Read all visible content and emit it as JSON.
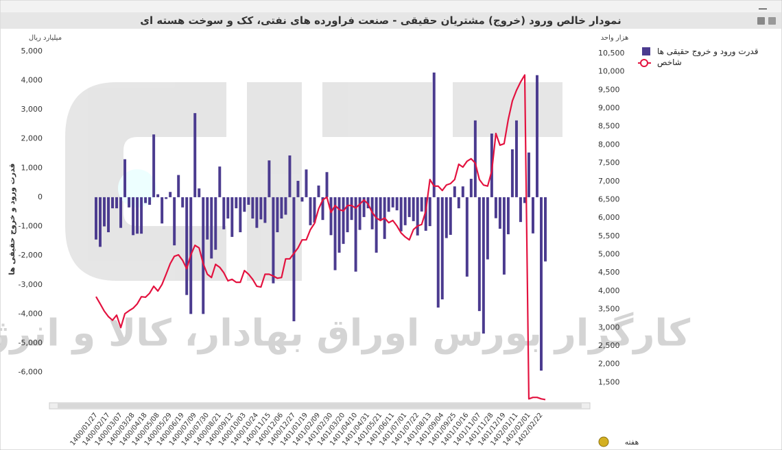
{
  "chart_data": {
    "type": "combo",
    "title": "نمودار خالص ورود (خروج) مشتریان حقیقی - صنعت فراورده های نفتی، کک و سوخت هسته ای",
    "y_unit": "میلیارد ریال",
    "y2_unit": "هزار واحد",
    "y_label": "قدرت ورود و خروج حقیقی ها",
    "x_label": "هفته",
    "watermark": "کارگزار بورس اوراق بهادار، کالا و انرژی",
    "grid": false,
    "legend": "right",
    "categories": [
      "1400/01/27",
      null,
      null,
      "1400/02/17",
      null,
      null,
      "1400/03/07",
      null,
      null,
      "1400/03/28",
      null,
      null,
      "1400/04/18",
      null,
      null,
      "1400/05/08",
      null,
      null,
      "1400/05/29",
      null,
      null,
      "1400/06/19",
      null,
      null,
      "1400/07/09",
      null,
      null,
      "1400/07/30",
      null,
      null,
      "1400/08/21",
      null,
      null,
      "1400/09/12",
      null,
      null,
      "1400/10/03",
      null,
      null,
      "1400/10/24",
      null,
      null,
      "1400/11/15",
      null,
      null,
      "1400/12/06",
      null,
      null,
      "1400/12/27",
      null,
      null,
      "1401/01/19",
      null,
      null,
      "1401/02/09",
      null,
      null,
      "1401/02/30",
      null,
      null,
      "1401/03/20",
      null,
      null,
      "1401/04/10",
      null,
      null,
      "1401/04/31",
      null,
      null,
      "1401/05/21",
      null,
      null,
      "1401/06/11",
      null,
      null,
      "1401/07/01",
      null,
      null,
      "1401/07/22",
      null,
      null,
      "1401/08/13",
      null,
      null,
      "1401/09/04",
      null,
      null,
      "1401/09/25",
      null,
      null,
      "1401/10/16",
      null,
      null,
      "1401/11/07",
      null,
      null,
      "1401/11/28",
      null,
      null,
      "1401/12/19",
      null,
      null,
      "1402/01/11",
      null,
      null,
      "1402/02/01",
      null,
      null,
      "1402/02/22",
      null
    ],
    "series": [
      {
        "name": "قدرت ورود و خروج حقیقی ها",
        "type": "bar",
        "color": "#4b3b8f",
        "values": [
          -1450,
          -1700,
          -1000,
          -1200,
          -380,
          -380,
          -1050,
          1300,
          -350,
          -1300,
          -1250,
          -1250,
          -200,
          -260,
          2150,
          100,
          -900,
          -60,
          180,
          -1650,
          760,
          -350,
          -3350,
          -4000,
          2880,
          300,
          -4000,
          -1450,
          -2100,
          -1800,
          1050,
          -1100,
          -730,
          -1360,
          -380,
          -1200,
          -500,
          -260,
          -730,
          -1050,
          -760,
          -880,
          1260,
          -2950,
          -1200,
          -730,
          -600,
          1430,
          -4250,
          560,
          -150,
          950,
          -960,
          -870,
          400,
          -780,
          860,
          -1300,
          -2500,
          -1900,
          -1600,
          -1200,
          -780,
          -2550,
          -1120,
          -680,
          -380,
          -1100,
          -1900,
          -800,
          -1430,
          -500,
          -350,
          -450,
          -1170,
          -960,
          -680,
          -820,
          -1310,
          -490,
          -1150,
          -990,
          4270,
          -3780,
          -3500,
          -1400,
          -1290,
          370,
          -380,
          370,
          -2720,
          630,
          2630,
          -3900,
          -4670,
          -2130,
          2180,
          -720,
          -1080,
          -2650,
          -1270,
          1640,
          2630,
          -850,
          -200,
          1530,
          -1240,
          4180,
          -5940,
          -2200
        ]
      },
      {
        "name": "شاخص",
        "type": "line",
        "axis": "y2",
        "color": "#e3123f",
        "values": [
          3845,
          3650,
          3450,
          3300,
          3200,
          3340,
          3000,
          3380,
          3460,
          3530,
          3650,
          3845,
          3830,
          3940,
          4130,
          4000,
          4180,
          4460,
          4750,
          4950,
          4990,
          4840,
          4610,
          4990,
          5250,
          5180,
          4750,
          4460,
          4370,
          4730,
          4650,
          4500,
          4280,
          4320,
          4240,
          4240,
          4560,
          4460,
          4320,
          4130,
          4110,
          4460,
          4460,
          4410,
          4350,
          4370,
          4880,
          4880,
          5030,
          5180,
          5400,
          5400,
          5680,
          5850,
          6250,
          6490,
          6570,
          6150,
          6340,
          6230,
          6190,
          6340,
          6340,
          6270,
          6380,
          6490,
          6380,
          6150,
          6000,
          5930,
          6000,
          5870,
          5930,
          5780,
          5590,
          5480,
          5400,
          5680,
          5780,
          5820,
          6190,
          7050,
          6870,
          6870,
          6750,
          6900,
          6940,
          7050,
          7470,
          7390,
          7550,
          7620,
          7500,
          7050,
          6900,
          6870,
          7280,
          8310,
          7990,
          8030,
          8690,
          9200,
          9490,
          9720,
          9910,
          1050,
          1090,
          1090,
          1050,
          1030
        ]
      }
    ],
    "ylim": [
      -6970,
      5300
    ],
    "yticks": [
      {
        "value": 5000,
        "label": "5,000"
      },
      {
        "value": 4000,
        "label": "4,000"
      },
      {
        "value": 3000,
        "label": "3,000"
      },
      {
        "value": 2000,
        "label": "2,000"
      },
      {
        "value": 1000,
        "label": "1,000"
      },
      0,
      {
        "value": -1000,
        "label": "-1,000"
      },
      {
        "value": -2000,
        "label": "-2,000"
      },
      {
        "value": -3000,
        "label": "-3,000"
      },
      {
        "value": -4000,
        "label": "-4,000"
      },
      {
        "value": -5000,
        "label": "-5,000"
      },
      {
        "value": -6000,
        "label": "-6,000"
      }
    ],
    "y2lim": [
      1000,
      10800
    ],
    "y2ticks": [
      {
        "value": 10500,
        "label": "10,500"
      },
      {
        "value": 10000,
        "label": "10,000"
      },
      {
        "value": 9500,
        "label": "9,500"
      },
      {
        "value": 9000,
        "label": "9,000"
      },
      {
        "value": 8500,
        "label": "8,500"
      },
      {
        "value": 8000,
        "label": "8,000"
      },
      {
        "value": 7500,
        "label": "7,500"
      },
      {
        "value": 7000,
        "label": "7,000"
      },
      {
        "value": 6500,
        "label": "6,500"
      },
      {
        "value": 6000,
        "label": "6,000"
      },
      {
        "value": 5500,
        "label": "5,500"
      },
      {
        "value": 5000,
        "label": "5,000"
      },
      {
        "value": 4500,
        "label": "4,500"
      },
      {
        "value": 4000,
        "label": "4,000"
      },
      {
        "value": 3500,
        "label": "3,500"
      },
      {
        "value": 3000,
        "label": "3,000"
      },
      {
        "value": 2500,
        "label": "2,500"
      },
      {
        "value": 2000,
        "label": "2,000"
      },
      {
        "value": 1500,
        "label": "1,500"
      }
    ]
  }
}
